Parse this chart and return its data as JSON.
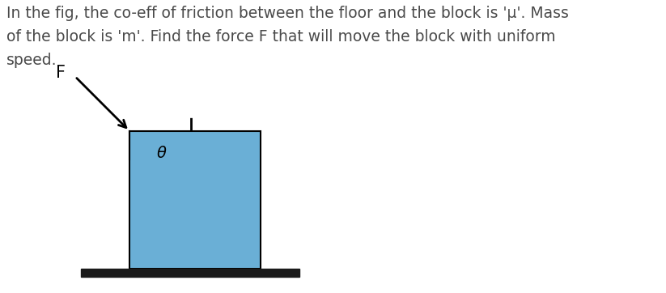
{
  "text_content": "In the fig, the co-eff of friction between the floor and the block is 'μ'. Mass\nof the block is 'm'. Find the force F that will move the block with uniform\nspeed.",
  "text_color": "#4a4a4a",
  "text_fontsize": 13.5,
  "block_color": "#6aafd6",
  "block_edgecolor": "#000000",
  "floor_color": "#1a1a1a",
  "background_color": "#ffffff",
  "arrow_color": "#000000"
}
